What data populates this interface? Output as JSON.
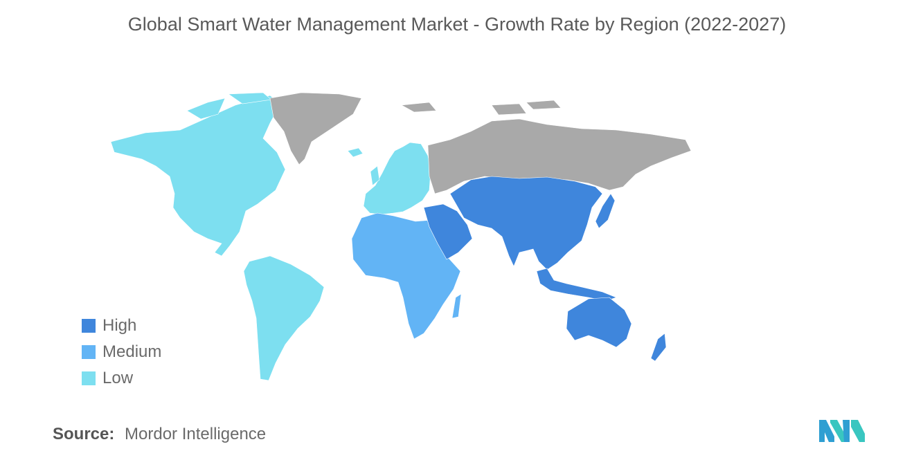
{
  "title": "Global Smart Water Management Market - Growth Rate by Region (2022-2027)",
  "legend": [
    {
      "label": "High",
      "color": "#3f86dc"
    },
    {
      "label": "Medium",
      "color": "#62b4f5"
    },
    {
      "label": "Low",
      "color": "#7ddff0"
    }
  ],
  "colors": {
    "no_data": "#a9a9a9"
  },
  "source": {
    "label": "Source:",
    "text": "Mordor Intelligence"
  },
  "logo": {
    "icon": "mordor-intelligence-logo",
    "colors": [
      "#2f9fd2",
      "#39c6c0"
    ]
  }
}
